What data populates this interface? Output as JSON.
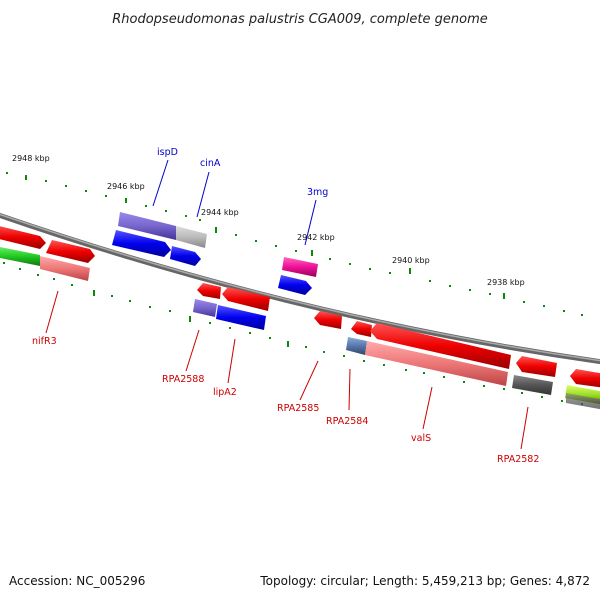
{
  "title": "Rhodopseudomonas palustris CGA009, complete genome",
  "accession": "Accession: NC_005296",
  "topology": "Topology: circular; Length: 5,459,213 bp; Genes: 4,872",
  "scale_labels": [
    "2948 kbp",
    "2946 kbp",
    "2944 kbp",
    "2942 kbp",
    "2940 kbp",
    "2938 kbp"
  ],
  "genes_forward": [
    "ispD",
    "cinA",
    "3mg"
  ],
  "genes_reverse": [
    "nifR3",
    "RPA2588",
    "lipA2",
    "RPA2585",
    "RPA2584",
    "valS",
    "RPA2582"
  ],
  "colors": {
    "backbone": "#808080",
    "tick": "#0a8a0a",
    "forward_label": "#0000cc",
    "reverse_label": "#cc0000",
    "red": "#ee0000",
    "blue": "#0000ee",
    "purple": "#7766cc",
    "grey": "#aaaaaa",
    "magenta": "#ee1199",
    "green": "#22cc22",
    "salmon": "#ee7777"
  }
}
